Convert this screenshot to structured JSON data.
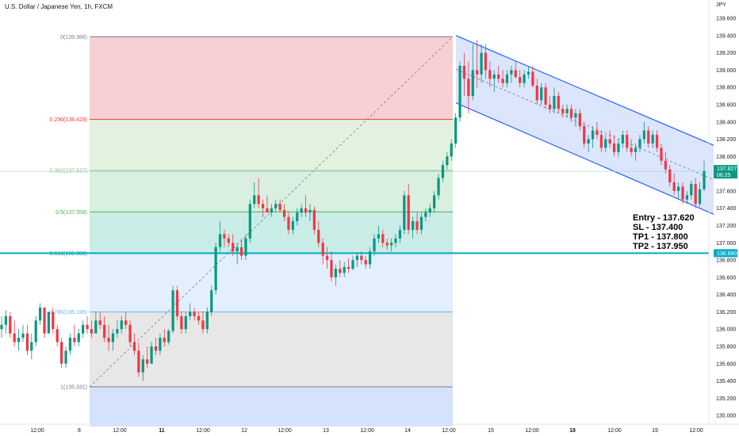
{
  "header": {
    "symbol_title": "U.S. Dollar / Japanese Yen, 1h, FXCM",
    "currency": "JPY"
  },
  "trade_plan": {
    "entry": "Entry - 137.620",
    "sl": "SL - 137.400",
    "tp1": "TP1 - 137.800",
    "tp2": "TP2 - 137.950"
  },
  "chart_data": {
    "type": "candlestick",
    "y_axis": {
      "ylim": [
        134.9,
        139.72
      ],
      "ticks": [
        "135.000",
        "135.200",
        "135.400",
        "135.600",
        "135.800",
        "136.000",
        "136.200",
        "136.400",
        "136.600",
        "136.800",
        "137.000",
        "137.200",
        "137.400",
        "137.600",
        "137.800",
        "138.000",
        "138.200",
        "138.400",
        "138.600",
        "138.800",
        "139.000",
        "139.200",
        "139.400",
        "139.600"
      ]
    },
    "x_axis": {
      "ticks": [
        {
          "label": "12:00",
          "bold": false
        },
        {
          "label": "8",
          "bold": false
        },
        {
          "label": "12:00",
          "bold": false
        },
        {
          "label": "11",
          "bold": true
        },
        {
          "label": "12:00",
          "bold": false
        },
        {
          "label": "12",
          "bold": false
        },
        {
          "label": "12:00",
          "bold": false
        },
        {
          "label": "13",
          "bold": false
        },
        {
          "label": "12:00",
          "bold": false
        },
        {
          "label": "14",
          "bold": false
        },
        {
          "label": "12:00",
          "bold": false
        },
        {
          "label": "15",
          "bold": false
        },
        {
          "label": "12:00",
          "bold": false
        },
        {
          "label": "18",
          "bold": true
        },
        {
          "label": "12:00",
          "bold": false
        },
        {
          "label": "19",
          "bold": false
        },
        {
          "label": "12:00",
          "bold": false
        }
      ]
    },
    "fibonacci": {
      "levels": [
        {
          "label": "0(139.386)",
          "price": 139.386,
          "color": "#787b86"
        },
        {
          "label": "0.236(138.429)",
          "price": 138.429,
          "color": "#f23645"
        },
        {
          "label": "0.382(137.837)",
          "price": 137.837,
          "color": "#81c784"
        },
        {
          "label": "0.5(137.358)",
          "price": 137.358,
          "color": "#4caf50"
        },
        {
          "label": "0.618(136.880)",
          "price": 136.88,
          "color": "#089981"
        },
        {
          "label": "0.786(136.199)",
          "price": 136.199,
          "color": "#64b5f6"
        },
        {
          "label": "1(135.331)",
          "price": 135.331,
          "color": "#787b86"
        }
      ],
      "zone_colors": [
        "#f7d0d3",
        "#e3f2df",
        "#d9efe0",
        "#c9ece7",
        "#e3effc",
        "#e7e7e7",
        "#d4e2fc"
      ]
    },
    "channel": {
      "color": "#2962ff",
      "fill": "#dbe5fb",
      "upper_start_price": 139.4,
      "upper_end_price": 138.13,
      "lower_start_price": 138.62,
      "lower_end_price": 137.33,
      "mid_start_price": 139.01,
      "mid_end_price": 137.73
    },
    "levels": {
      "current_price": "137.827",
      "countdown": "06:25",
      "marked_level": "136.880"
    },
    "colors": {
      "up": "#089981",
      "down": "#f23645"
    },
    "candles": [
      [
        136.0,
        136.15,
        135.9,
        136.05
      ],
      [
        136.05,
        136.22,
        135.95,
        136.15
      ],
      [
        136.15,
        136.2,
        135.9,
        135.95
      ],
      [
        135.95,
        136.1,
        135.8,
        135.85
      ],
      [
        135.85,
        136.0,
        135.75,
        135.9
      ],
      [
        135.9,
        136.05,
        135.85,
        135.95
      ],
      [
        135.95,
        136.05,
        135.7,
        135.75
      ],
      [
        135.75,
        135.95,
        135.65,
        135.85
      ],
      [
        135.85,
        136.15,
        135.8,
        136.1
      ],
      [
        136.1,
        136.3,
        136.05,
        136.25
      ],
      [
        136.25,
        136.25,
        135.9,
        135.95
      ],
      [
        135.95,
        136.2,
        135.95,
        136.2
      ],
      [
        136.2,
        136.25,
        135.95,
        136.0
      ],
      [
        136.0,
        136.05,
        135.8,
        135.85
      ],
      [
        135.85,
        135.9,
        135.55,
        135.6
      ],
      [
        135.6,
        135.8,
        135.55,
        135.75
      ],
      [
        135.75,
        135.95,
        135.7,
        135.9
      ],
      [
        135.9,
        136.05,
        135.8,
        135.85
      ],
      [
        135.85,
        136.0,
        135.8,
        135.95
      ],
      [
        135.95,
        136.1,
        135.9,
        136.05
      ],
      [
        136.05,
        136.15,
        135.95,
        136.0
      ],
      [
        136.0,
        136.1,
        135.9,
        135.95
      ],
      [
        135.95,
        136.2,
        135.95,
        136.1
      ],
      [
        136.1,
        136.2,
        136.0,
        136.05
      ],
      [
        136.05,
        136.15,
        135.85,
        135.9
      ],
      [
        135.9,
        136.05,
        135.75,
        135.85
      ],
      [
        135.85,
        136.0,
        135.75,
        135.95
      ],
      [
        135.95,
        136.1,
        135.9,
        136.0
      ],
      [
        136.0,
        136.15,
        135.95,
        136.1
      ],
      [
        136.1,
        136.2,
        136.0,
        136.05
      ],
      [
        136.05,
        136.1,
        135.8,
        135.85
      ],
      [
        135.85,
        135.95,
        135.7,
        135.75
      ],
      [
        135.75,
        135.85,
        135.45,
        135.5
      ],
      [
        135.5,
        135.7,
        135.4,
        135.65
      ],
      [
        135.65,
        135.8,
        135.55,
        135.6
      ],
      [
        135.6,
        135.85,
        135.6,
        135.8
      ],
      [
        135.8,
        135.9,
        135.7,
        135.75
      ],
      [
        135.75,
        135.95,
        135.7,
        135.9
      ],
      [
        135.9,
        136.0,
        135.8,
        135.85
      ],
      [
        135.85,
        136.0,
        135.82,
        135.98
      ],
      [
        135.98,
        136.5,
        135.95,
        136.45
      ],
      [
        136.45,
        136.5,
        136.1,
        136.15
      ],
      [
        136.15,
        136.2,
        135.95,
        136.0
      ],
      [
        136.0,
        136.2,
        135.95,
        136.15
      ],
      [
        136.15,
        136.3,
        136.1,
        136.2
      ],
      [
        136.2,
        136.25,
        136.1,
        136.15
      ],
      [
        136.15,
        136.2,
        136.05,
        136.1
      ],
      [
        136.1,
        136.2,
        135.95,
        136.0
      ],
      [
        136.0,
        136.25,
        135.95,
        136.2
      ],
      [
        136.2,
        136.5,
        136.15,
        136.45
      ],
      [
        136.45,
        137.0,
        136.4,
        136.95
      ],
      [
        136.95,
        137.25,
        136.9,
        137.1
      ],
      [
        137.1,
        137.15,
        136.95,
        137.05
      ],
      [
        137.05,
        137.1,
        136.95,
        137.0
      ],
      [
        137.0,
        137.1,
        136.85,
        136.9
      ],
      [
        136.9,
        137.0,
        136.75,
        136.95
      ],
      [
        136.95,
        137.05,
        136.8,
        136.85
      ],
      [
        136.85,
        137.1,
        136.8,
        137.05
      ],
      [
        137.05,
        137.5,
        137.0,
        137.45
      ],
      [
        137.45,
        137.7,
        137.4,
        137.55
      ],
      [
        137.55,
        137.75,
        137.4,
        137.45
      ],
      [
        137.45,
        137.5,
        137.3,
        137.4
      ],
      [
        137.4,
        137.55,
        137.35,
        137.35
      ],
      [
        137.35,
        137.45,
        137.3,
        137.4
      ],
      [
        137.4,
        137.5,
        137.35,
        137.45
      ],
      [
        137.45,
        137.5,
        137.35,
        137.38
      ],
      [
        137.38,
        137.45,
        137.25,
        137.3
      ],
      [
        137.3,
        137.35,
        137.1,
        137.15
      ],
      [
        137.15,
        137.3,
        137.1,
        137.25
      ],
      [
        137.25,
        137.4,
        137.2,
        137.35
      ],
      [
        137.35,
        137.45,
        137.3,
        137.4
      ],
      [
        137.4,
        137.55,
        137.3,
        137.35
      ],
      [
        137.35,
        137.45,
        137.25,
        137.38
      ],
      [
        137.38,
        137.42,
        137.1,
        137.15
      ],
      [
        137.15,
        137.25,
        136.95,
        137.0
      ],
      [
        137.0,
        137.05,
        136.75,
        136.85
      ],
      [
        136.85,
        136.95,
        136.7,
        136.8
      ],
      [
        136.8,
        136.9,
        136.55,
        136.6
      ],
      [
        136.6,
        136.75,
        136.5,
        136.7
      ],
      [
        136.7,
        136.8,
        136.6,
        136.65
      ],
      [
        136.65,
        136.78,
        136.6,
        136.72
      ],
      [
        136.72,
        136.82,
        136.65,
        136.7
      ],
      [
        136.7,
        136.85,
        136.68,
        136.8
      ],
      [
        136.8,
        136.88,
        136.72,
        136.85
      ],
      [
        136.85,
        136.9,
        136.75,
        136.8
      ],
      [
        136.8,
        136.85,
        136.7,
        136.75
      ],
      [
        136.75,
        136.95,
        136.7,
        136.9
      ],
      [
        136.9,
        137.1,
        136.85,
        137.05
      ],
      [
        137.05,
        137.2,
        137.0,
        137.1
      ],
      [
        137.1,
        137.15,
        136.95,
        137.0
      ],
      [
        137.0,
        137.05,
        136.92,
        136.97
      ],
      [
        136.97,
        137.05,
        136.9,
        137.0
      ],
      [
        137.0,
        137.1,
        136.95,
        137.05
      ],
      [
        137.05,
        137.2,
        137.0,
        137.15
      ],
      [
        137.15,
        137.6,
        137.1,
        137.55
      ],
      [
        137.55,
        137.68,
        137.1,
        137.15
      ],
      [
        137.15,
        137.3,
        137.05,
        137.25
      ],
      [
        137.25,
        137.35,
        137.1,
        137.15
      ],
      [
        137.15,
        137.35,
        137.1,
        137.3
      ],
      [
        137.3,
        137.4,
        137.25,
        137.35
      ],
      [
        137.35,
        137.45,
        137.3,
        137.4
      ],
      [
        137.4,
        137.6,
        137.35,
        137.55
      ],
      [
        137.55,
        137.8,
        137.5,
        137.75
      ],
      [
        137.75,
        137.95,
        137.7,
        137.9
      ],
      [
        137.9,
        138.05,
        137.85,
        138.0
      ],
      [
        138.0,
        138.2,
        137.95,
        138.15
      ],
      [
        138.15,
        138.5,
        138.1,
        138.45
      ],
      [
        138.45,
        139.1,
        138.4,
        139.05
      ],
      [
        139.05,
        139.2,
        138.7,
        138.9
      ],
      [
        138.9,
        139.1,
        138.5,
        138.7
      ],
      [
        138.7,
        139.3,
        138.65,
        139.0
      ],
      [
        139.0,
        139.35,
        138.8,
        138.95
      ],
      [
        138.95,
        139.3,
        138.85,
        139.2
      ],
      [
        139.2,
        139.3,
        138.9,
        139.0
      ],
      [
        139.0,
        139.1,
        138.8,
        138.9
      ],
      [
        138.9,
        139.0,
        138.75,
        138.95
      ],
      [
        138.95,
        139.05,
        138.85,
        138.9
      ],
      [
        138.9,
        139.0,
        138.8,
        138.85
      ],
      [
        138.85,
        139.0,
        138.8,
        138.95
      ],
      [
        138.95,
        139.05,
        138.85,
        139.0
      ],
      [
        139.0,
        139.1,
        138.9,
        138.92
      ],
      [
        138.92,
        139.0,
        138.8,
        138.85
      ],
      [
        138.85,
        139.0,
        138.8,
        138.95
      ],
      [
        138.95,
        139.05,
        138.9,
        138.98
      ],
      [
        138.98,
        139.05,
        138.8,
        138.82
      ],
      [
        138.82,
        138.9,
        138.6,
        138.65
      ],
      [
        138.65,
        138.85,
        138.6,
        138.8
      ],
      [
        138.8,
        138.85,
        138.55,
        138.6
      ],
      [
        138.6,
        138.7,
        138.5,
        138.55
      ],
      [
        138.55,
        138.8,
        138.5,
        138.7
      ],
      [
        138.7,
        138.75,
        138.5,
        138.55
      ],
      [
        138.55,
        138.6,
        138.45,
        138.5
      ],
      [
        138.5,
        138.6,
        138.45,
        138.55
      ],
      [
        138.55,
        138.6,
        138.4,
        138.45
      ],
      [
        138.45,
        138.55,
        138.35,
        138.5
      ],
      [
        138.5,
        138.55,
        138.3,
        138.35
      ],
      [
        138.35,
        138.4,
        138.1,
        138.15
      ],
      [
        138.15,
        138.25,
        138.05,
        138.2
      ],
      [
        138.2,
        138.35,
        138.1,
        138.3
      ],
      [
        138.3,
        138.4,
        138.2,
        138.25
      ],
      [
        138.25,
        138.3,
        138.05,
        138.1
      ],
      [
        138.1,
        138.25,
        138.05,
        138.2
      ],
      [
        138.2,
        138.3,
        138.1,
        138.15
      ],
      [
        138.15,
        138.25,
        138.0,
        138.05
      ],
      [
        138.05,
        138.2,
        138.0,
        138.15
      ],
      [
        138.15,
        138.3,
        138.1,
        138.25
      ],
      [
        138.25,
        138.3,
        138.05,
        138.1
      ],
      [
        138.1,
        138.2,
        138.0,
        138.05
      ],
      [
        138.05,
        138.15,
        137.95,
        138.1
      ],
      [
        138.1,
        138.25,
        138.05,
        138.2
      ],
      [
        138.2,
        138.4,
        138.15,
        138.3
      ],
      [
        138.3,
        138.35,
        138.1,
        138.15
      ],
      [
        138.15,
        138.3,
        138.1,
        138.25
      ],
      [
        138.25,
        138.3,
        138.05,
        138.1
      ],
      [
        138.1,
        138.15,
        137.9,
        137.95
      ],
      [
        137.95,
        138.05,
        137.8,
        137.85
      ],
      [
        137.85,
        137.9,
        137.65,
        137.7
      ],
      [
        137.7,
        137.8,
        137.55,
        137.6
      ],
      [
        137.6,
        137.7,
        137.5,
        137.65
      ],
      [
        137.65,
        137.7,
        137.45,
        137.5
      ],
      [
        137.5,
        137.6,
        137.45,
        137.55
      ],
      [
        137.55,
        137.72,
        137.5,
        137.68
      ],
      [
        137.68,
        137.75,
        137.4,
        137.45
      ],
      [
        137.45,
        137.7,
        137.42,
        137.62
      ],
      [
        137.62,
        137.95,
        137.6,
        137.83
      ]
    ]
  }
}
